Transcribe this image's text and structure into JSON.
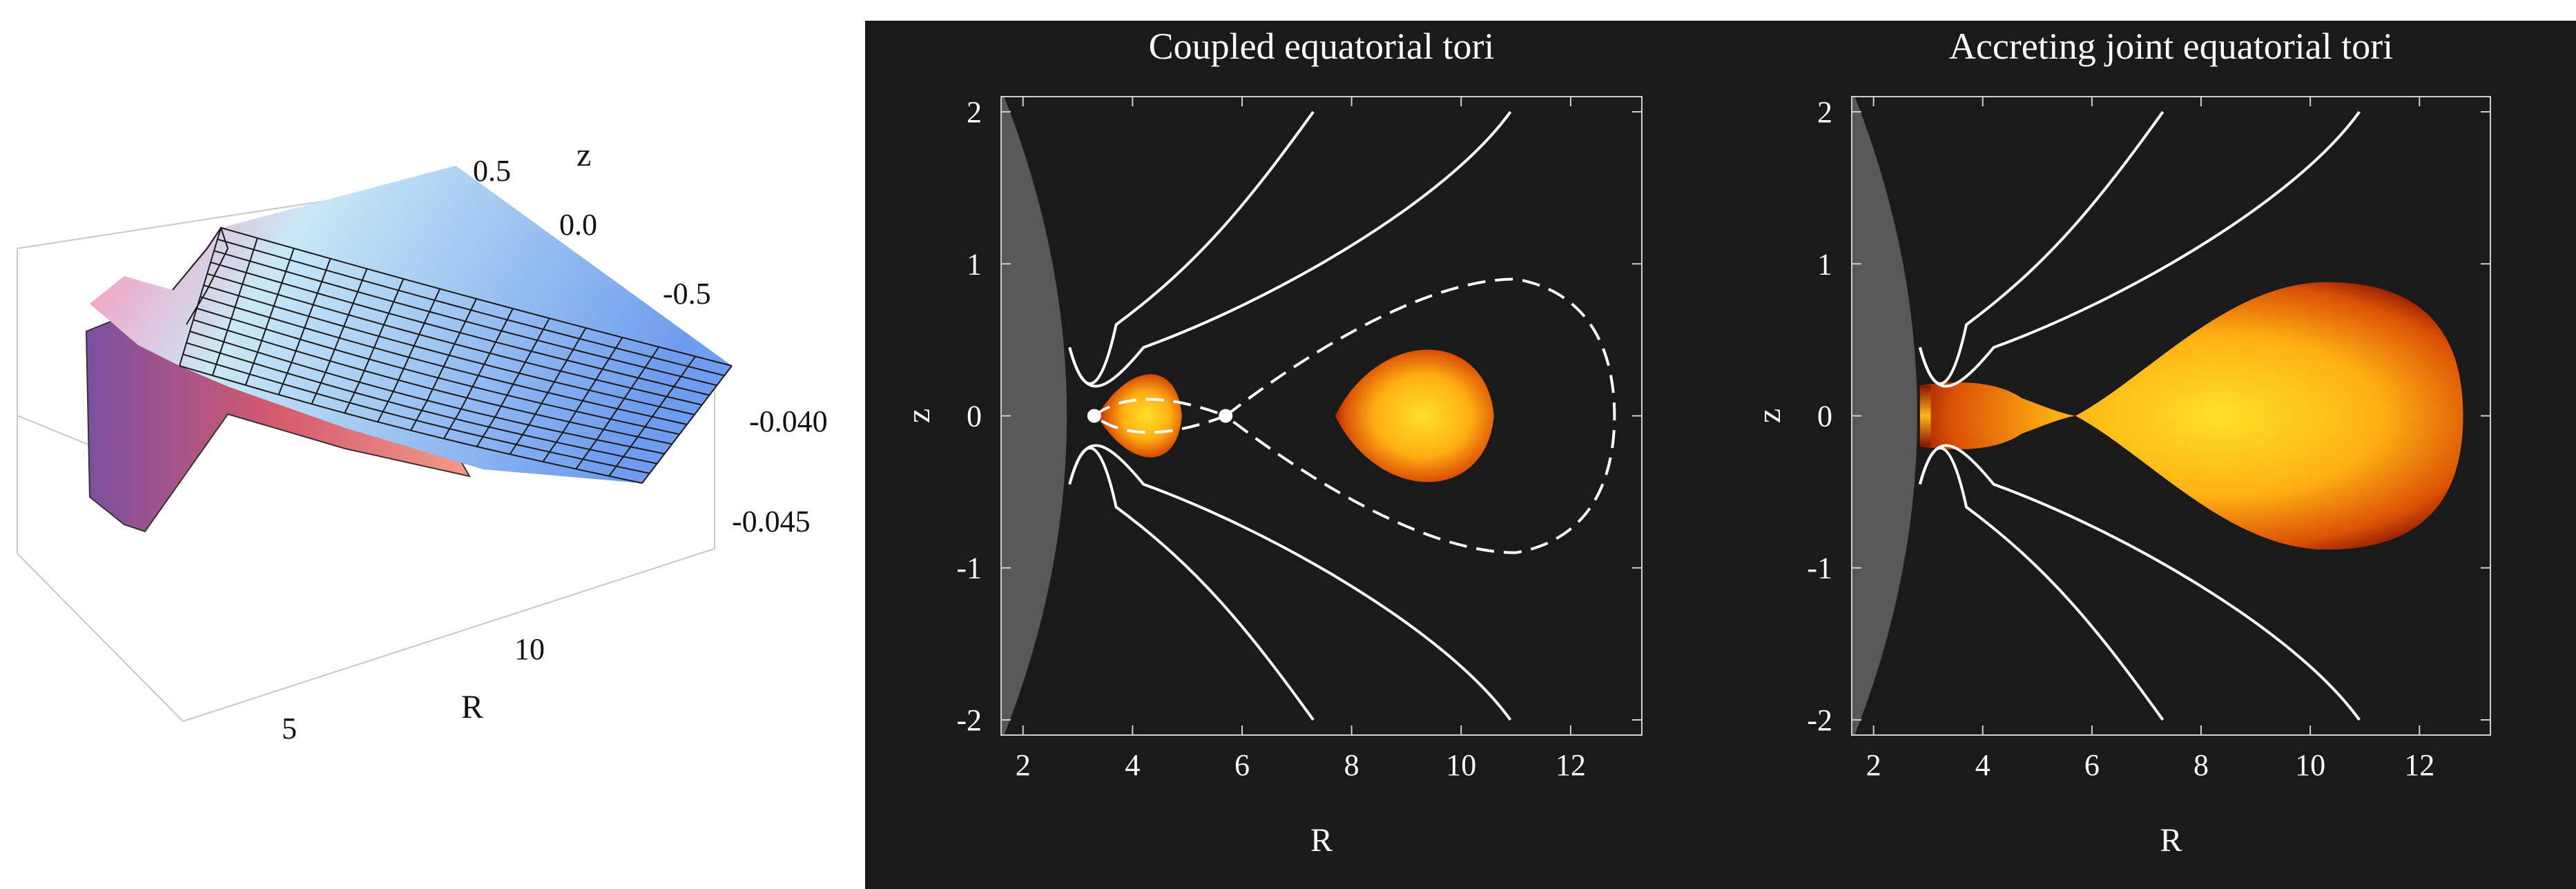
{
  "chart_data": [
    {
      "type": "surface",
      "xlabel": "R",
      "ylabel": "z",
      "x_ticks": [
        "5",
        "10"
      ],
      "y_ticks": [
        "0.5",
        "0.0",
        "-0.5"
      ],
      "v_ticks": [
        "-0.040",
        "-0.045"
      ],
      "surface_colors": [
        "#e85a6a",
        "#f2a8c8",
        "#c9e8f6",
        "#6f9cee"
      ]
    },
    {
      "type": "contour",
      "title": "Coupled equatorial tori",
      "xlabel": "R",
      "ylabel": "z",
      "xlim": [
        1.6,
        13.3
      ],
      "ylim": [
        -2.1,
        2.1
      ],
      "x_ticks": [
        "2",
        "4",
        "6",
        "8",
        "10",
        "12"
      ],
      "y_ticks": [
        "2",
        "1",
        "0",
        "-1",
        "-2"
      ],
      "black_hole_edge_R": 2.8,
      "tori": [
        {
          "R_in": 3.35,
          "R_out": 4.9,
          "z_halfwidth": 0.27
        },
        {
          "R_in": 7.7,
          "R_out": 10.6,
          "z_halfwidth": 0.43
        }
      ],
      "cusp_points": [
        {
          "R": 3.3,
          "z": 0.0
        },
        {
          "R": 5.7,
          "z": 0.0
        }
      ],
      "dashed_separatrix_max_R": 12.8,
      "dashed_separatrix_max_z": 0.9,
      "white_streamlines_endpoints": [
        {
          "R": 7.3,
          "z": 2.0
        },
        {
          "R": 10.9,
          "z": 2.0
        },
        {
          "R": 7.3,
          "z": -2.0
        },
        {
          "R": 10.9,
          "z": -2.0
        }
      ],
      "colors": {
        "background": "#1a1a1a",
        "black_hole": "#585858",
        "torus_core": "#ffd21e",
        "torus_edge": "#8b0a00",
        "line": "#ffffff"
      }
    },
    {
      "type": "contour",
      "title": "Accreting joint equatorial tori",
      "xlabel": "R",
      "ylabel": "z",
      "xlim": [
        1.6,
        13.3
      ],
      "ylim": [
        -2.1,
        2.1
      ],
      "x_ticks": [
        "2",
        "4",
        "6",
        "8",
        "10",
        "12"
      ],
      "y_ticks": [
        "2",
        "1",
        "0",
        "-1",
        "-2"
      ],
      "black_hole_edge_R": 2.8,
      "joint_torus": {
        "R_in": 2.85,
        "R_neck": 5.7,
        "R_out": 12.8,
        "z_halfwidth_inner": 0.22,
        "z_halfwidth_outer": 0.88
      },
      "white_streamlines_endpoints": [
        {
          "R": 7.3,
          "z": 2.0
        },
        {
          "R": 10.9,
          "z": 2.0
        },
        {
          "R": 7.3,
          "z": -2.0
        },
        {
          "R": 10.9,
          "z": -2.0
        }
      ],
      "colors": {
        "background": "#1a1a1a",
        "black_hole": "#585858",
        "torus_core": "#ffd21e",
        "torus_edge": "#8b0a00",
        "line": "#ffffff"
      }
    }
  ]
}
